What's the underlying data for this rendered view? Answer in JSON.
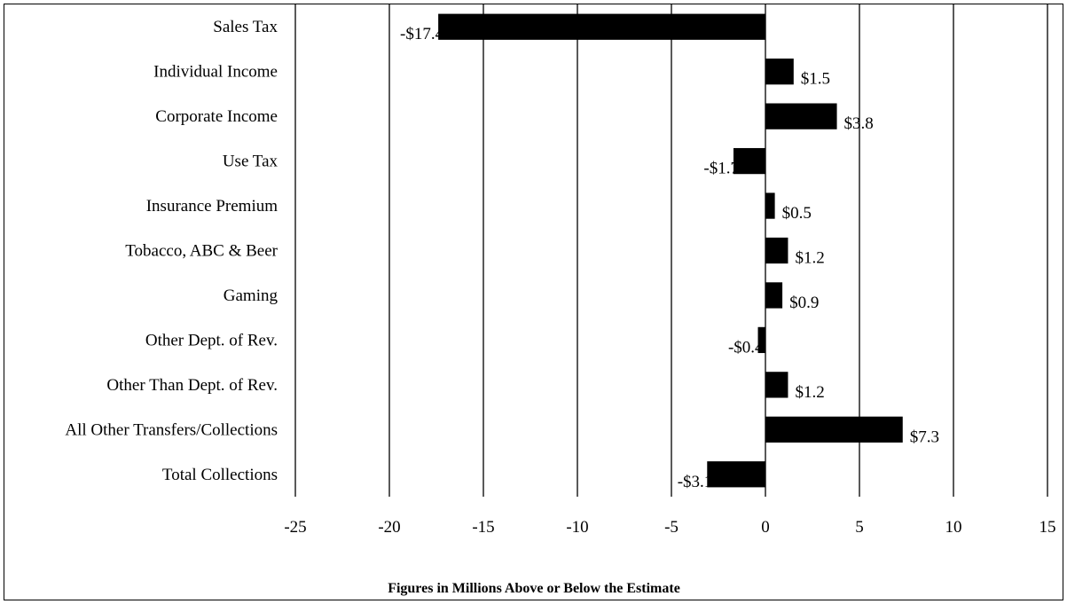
{
  "chart_data": {
    "type": "bar",
    "orientation": "horizontal",
    "title": "",
    "xlabel": "Figures in Millions Above or Below the Estimate",
    "ylabel": "",
    "xlim": [
      -25,
      15
    ],
    "x_ticks": [
      -25,
      -20,
      -15,
      -10,
      -5,
      0,
      5,
      10,
      15
    ],
    "x_tick_labels": [
      "-25",
      "-20",
      "-15",
      "-10",
      "-5",
      "0",
      "5",
      "10",
      "15"
    ],
    "grid": "vertical",
    "legend": "none",
    "bar_color": "#000000",
    "categories": [
      "Sales Tax",
      "Individual Income",
      "Corporate Income",
      "Use Tax",
      "Insurance Premium",
      "Tobacco, ABC & Beer",
      "Gaming",
      "Other Dept. of Rev.",
      "Other Than Dept. of Rev.",
      "All Other Transfers/Collections",
      "Total Collections"
    ],
    "values": [
      -17.4,
      1.5,
      3.8,
      -1.7,
      0.5,
      1.2,
      0.9,
      -0.4,
      1.2,
      7.3,
      -3.1
    ],
    "data_labels": [
      "-$17.4",
      "$1.5",
      "$3.8",
      "-$1.7",
      "$0.5",
      "$1.2",
      "$0.9",
      "-$0.4",
      "$1.2",
      "$7.3",
      "-$3.1"
    ]
  }
}
